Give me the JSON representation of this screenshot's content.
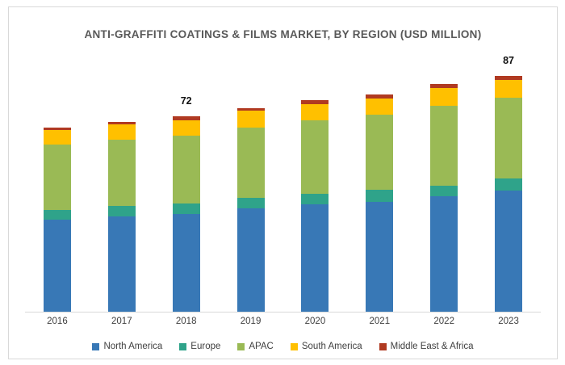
{
  "chart_data": {
    "type": "bar",
    "stacked": true,
    "title": "ANTI-GRAFFITI COATINGS & FILMS MARKET, BY REGION (USD MILLION)",
    "unit": "USD Million",
    "categories": [
      "2016",
      "2017",
      "2018",
      "2019",
      "2020",
      "2021",
      "2022",
      "2023"
    ],
    "series": [
      {
        "name": "North America",
        "color": "#3878B6",
        "values": [
          34.0,
          35.0,
          36.0,
          38.0,
          39.5,
          40.5,
          42.5,
          44.5
        ]
      },
      {
        "name": "Europe",
        "color": "#2FA38A",
        "values": [
          3.5,
          4.0,
          4.0,
          4.0,
          4.0,
          4.5,
          4.0,
          4.5
        ]
      },
      {
        "name": "APAC",
        "color": "#9ABA55",
        "values": [
          24.0,
          24.5,
          25.0,
          26.0,
          27.0,
          27.5,
          29.5,
          30.0
        ]
      },
      {
        "name": "South America",
        "color": "#FFC000",
        "values": [
          5.5,
          5.5,
          5.5,
          6.0,
          6.0,
          6.0,
          6.5,
          6.5
        ]
      },
      {
        "name": "Middle East & Africa",
        "color": "#B03A21",
        "values": [
          1.0,
          1.0,
          1.5,
          1.0,
          1.5,
          1.5,
          1.5,
          1.5
        ]
      }
    ],
    "totals": [
      68,
      70,
      72,
      75,
      78,
      80,
      84,
      87
    ],
    "total_labels": [
      "",
      "",
      "72",
      "",
      "",
      "",
      "",
      "87"
    ],
    "ylim": [
      0,
      95
    ],
    "grid": false,
    "axes_hidden": true,
    "legend_position": "bottom"
  },
  "colors": {
    "frame_border": "#D9D9D9",
    "axis_line": "#D9D9D9",
    "title_text": "#595959",
    "axis_label_text": "#404040",
    "data_label_text": "#111111"
  }
}
